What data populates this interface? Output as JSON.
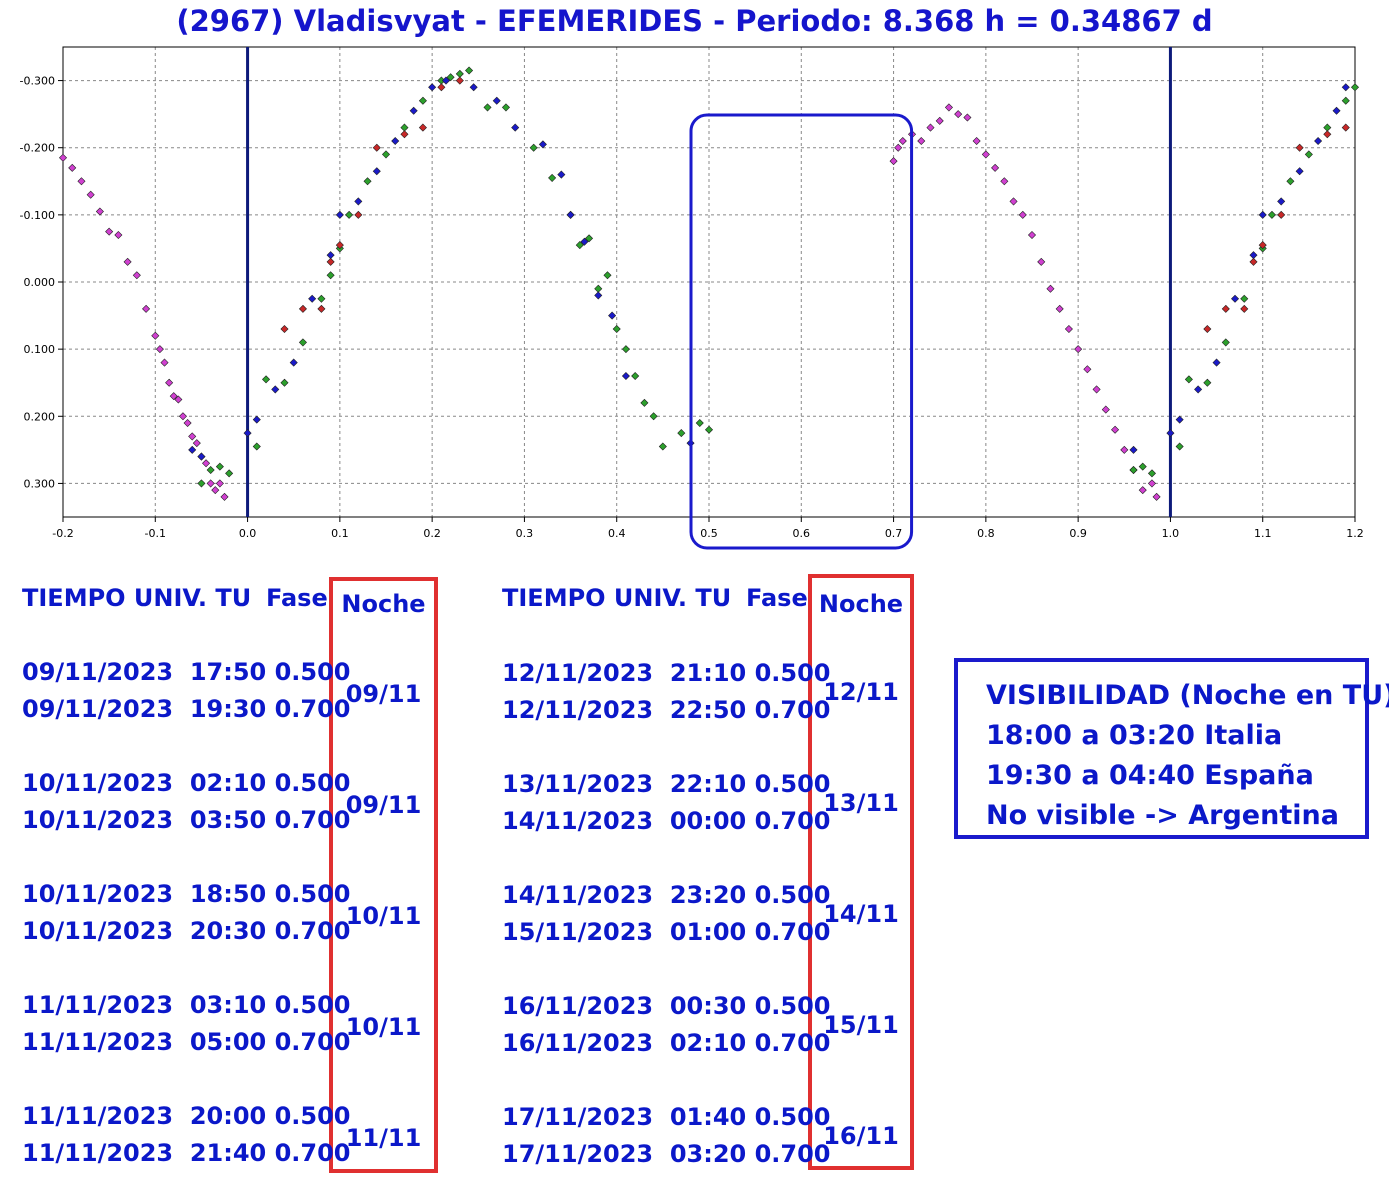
{
  "chart_data": {
    "type": "scatter",
    "title": "(2967) Vladisvyat - EFEMERIDES - Periodo: 8.368 h = 0.34867 d",
    "xlabel": "",
    "ylabel": "",
    "xlim": [
      -0.2,
      1.2
    ],
    "ylim": [
      0.35,
      -0.35
    ],
    "y_inverted": true,
    "x_ticks": [
      "-0.2",
      "-0.1",
      "0.0",
      "0.1",
      "0.2",
      "0.3",
      "0.4",
      "0.5",
      "0.6",
      "0.7",
      "0.8",
      "0.9",
      "1.0",
      "1.1",
      "1.2"
    ],
    "y_ticks": [
      "-0.300",
      "-0.200",
      "-0.100",
      "0.000",
      "0.100",
      "0.200",
      "0.300"
    ],
    "grid": true,
    "vertical_lines": [
      0.0,
      1.0
    ],
    "highlight_range": [
      0.5,
      0.7
    ],
    "colors": {
      "axis_line": "#0d1a7a",
      "highlight": "#1a1acc",
      "grid": "#888888"
    },
    "series": [
      {
        "color": "#d040d0",
        "points": [
          [
            -0.2,
            -0.185
          ],
          [
            -0.19,
            -0.17
          ],
          [
            -0.18,
            -0.15
          ],
          [
            -0.17,
            -0.13
          ],
          [
            -0.16,
            -0.105
          ],
          [
            -0.15,
            -0.075
          ],
          [
            -0.14,
            -0.07
          ],
          [
            -0.13,
            -0.03
          ],
          [
            -0.12,
            -0.01
          ],
          [
            -0.11,
            0.04
          ],
          [
            -0.1,
            0.08
          ],
          [
            -0.095,
            0.1
          ],
          [
            -0.09,
            0.12
          ],
          [
            -0.085,
            0.15
          ],
          [
            -0.08,
            0.17
          ],
          [
            -0.075,
            0.175
          ],
          [
            -0.07,
            0.2
          ],
          [
            -0.065,
            0.21
          ],
          [
            -0.06,
            0.23
          ],
          [
            -0.055,
            0.24
          ],
          [
            -0.05,
            0.26
          ],
          [
            -0.045,
            0.27
          ],
          [
            -0.04,
            0.3
          ],
          [
            -0.035,
            0.31
          ],
          [
            -0.03,
            0.3
          ],
          [
            -0.025,
            0.32
          ],
          [
            0.7,
            -0.18
          ],
          [
            0.705,
            -0.2
          ],
          [
            0.71,
            -0.21
          ],
          [
            0.72,
            -0.22
          ],
          [
            0.73,
            -0.21
          ],
          [
            0.74,
            -0.23
          ],
          [
            0.75,
            -0.24
          ],
          [
            0.76,
            -0.26
          ],
          [
            0.77,
            -0.25
          ],
          [
            0.78,
            -0.245
          ],
          [
            0.79,
            -0.21
          ],
          [
            0.8,
            -0.19
          ],
          [
            0.81,
            -0.17
          ],
          [
            0.82,
            -0.15
          ],
          [
            0.83,
            -0.12
          ],
          [
            0.84,
            -0.1
          ],
          [
            0.85,
            -0.07
          ],
          [
            0.86,
            -0.03
          ],
          [
            0.87,
            0.01
          ],
          [
            0.88,
            0.04
          ],
          [
            0.89,
            0.07
          ],
          [
            0.9,
            0.1
          ],
          [
            0.91,
            0.13
          ],
          [
            0.92,
            0.16
          ],
          [
            0.93,
            0.19
          ],
          [
            0.94,
            0.22
          ],
          [
            0.95,
            0.25
          ],
          [
            0.96,
            0.28
          ],
          [
            0.97,
            0.31
          ],
          [
            0.98,
            0.3
          ],
          [
            0.985,
            0.32
          ]
        ]
      },
      {
        "color": "#2ca02c",
        "points": [
          [
            -0.05,
            0.3
          ],
          [
            -0.04,
            0.28
          ],
          [
            -0.03,
            0.275
          ],
          [
            -0.02,
            0.285
          ],
          [
            0.01,
            0.245
          ],
          [
            0.02,
            0.145
          ],
          [
            0.04,
            0.15
          ],
          [
            0.06,
            0.09
          ],
          [
            0.08,
            0.025
          ],
          [
            0.09,
            -0.01
          ],
          [
            0.1,
            -0.05
          ],
          [
            0.11,
            -0.1
          ],
          [
            0.13,
            -0.15
          ],
          [
            0.15,
            -0.19
          ],
          [
            0.17,
            -0.23
          ],
          [
            0.19,
            -0.27
          ],
          [
            0.21,
            -0.3
          ],
          [
            0.22,
            -0.305
          ],
          [
            0.23,
            -0.31
          ],
          [
            0.24,
            -0.315
          ],
          [
            0.26,
            -0.26
          ],
          [
            0.28,
            -0.26
          ],
          [
            0.31,
            -0.2
          ],
          [
            0.33,
            -0.155
          ],
          [
            0.35,
            -0.1
          ],
          [
            0.36,
            -0.055
          ],
          [
            0.37,
            -0.065
          ],
          [
            0.38,
            0.01
          ],
          [
            0.39,
            -0.01
          ],
          [
            0.4,
            0.07
          ],
          [
            0.41,
            0.1
          ],
          [
            0.42,
            0.14
          ],
          [
            0.43,
            0.18
          ],
          [
            0.44,
            0.2
          ],
          [
            0.45,
            0.245
          ],
          [
            0.47,
            0.225
          ],
          [
            0.49,
            0.21
          ],
          [
            0.5,
            0.22
          ],
          [
            0.96,
            0.28
          ],
          [
            0.97,
            0.275
          ],
          [
            0.98,
            0.285
          ],
          [
            1.01,
            0.245
          ],
          [
            1.02,
            0.145
          ],
          [
            1.04,
            0.15
          ],
          [
            1.06,
            0.09
          ],
          [
            1.08,
            0.025
          ],
          [
            1.1,
            -0.05
          ],
          [
            1.11,
            -0.1
          ],
          [
            1.13,
            -0.15
          ],
          [
            1.15,
            -0.19
          ],
          [
            1.17,
            -0.23
          ],
          [
            1.19,
            -0.27
          ],
          [
            1.2,
            -0.29
          ]
        ]
      },
      {
        "color": "#1a1ac8",
        "points": [
          [
            -0.06,
            0.25
          ],
          [
            -0.05,
            0.26
          ],
          [
            0.0,
            0.225
          ],
          [
            0.01,
            0.205
          ],
          [
            0.03,
            0.16
          ],
          [
            0.05,
            0.12
          ],
          [
            0.07,
            0.025
          ],
          [
            0.09,
            -0.04
          ],
          [
            0.1,
            -0.1
          ],
          [
            0.12,
            -0.12
          ],
          [
            0.14,
            -0.165
          ],
          [
            0.16,
            -0.21
          ],
          [
            0.18,
            -0.255
          ],
          [
            0.2,
            -0.29
          ],
          [
            0.215,
            -0.3
          ],
          [
            0.245,
            -0.29
          ],
          [
            0.27,
            -0.27
          ],
          [
            0.29,
            -0.23
          ],
          [
            0.32,
            -0.205
          ],
          [
            0.34,
            -0.16
          ],
          [
            0.35,
            -0.1
          ],
          [
            0.365,
            -0.06
          ],
          [
            0.38,
            0.02
          ],
          [
            0.395,
            0.05
          ],
          [
            0.41,
            0.14
          ],
          [
            0.48,
            0.24
          ],
          [
            0.96,
            0.25
          ],
          [
            1.0,
            0.225
          ],
          [
            1.01,
            0.205
          ],
          [
            1.03,
            0.16
          ],
          [
            1.05,
            0.12
          ],
          [
            1.07,
            0.025
          ],
          [
            1.09,
            -0.04
          ],
          [
            1.1,
            -0.1
          ],
          [
            1.12,
            -0.12
          ],
          [
            1.14,
            -0.165
          ],
          [
            1.16,
            -0.21
          ],
          [
            1.18,
            -0.255
          ],
          [
            1.19,
            -0.29
          ]
        ]
      },
      {
        "color": "#c82828",
        "points": [
          [
            0.04,
            0.07
          ],
          [
            0.06,
            0.04
          ],
          [
            0.08,
            0.04
          ],
          [
            0.09,
            -0.03
          ],
          [
            0.1,
            -0.055
          ],
          [
            0.12,
            -0.1
          ],
          [
            0.14,
            -0.2
          ],
          [
            0.17,
            -0.22
          ],
          [
            0.19,
            -0.23
          ],
          [
            0.21,
            -0.29
          ],
          [
            0.23,
            -0.3
          ],
          [
            1.04,
            0.07
          ],
          [
            1.06,
            0.04
          ],
          [
            1.08,
            0.04
          ],
          [
            1.09,
            -0.03
          ],
          [
            1.1,
            -0.055
          ],
          [
            1.12,
            -0.1
          ],
          [
            1.14,
            -0.2
          ],
          [
            1.17,
            -0.22
          ],
          [
            1.19,
            -0.23
          ]
        ]
      }
    ]
  },
  "tables": [
    {
      "headers": {
        "tiempo": "TIEMPO UNIV. TU",
        "fase": "Fase",
        "noche": "Noche"
      },
      "groups": [
        {
          "rows": [
            "09/11/2023  17:50 0.500",
            "09/11/2023  19:30 0.700"
          ],
          "noche": "09/11"
        },
        {
          "rows": [
            "10/11/2023  02:10 0.500",
            "10/11/2023  03:50 0.700"
          ],
          "noche": "09/11"
        },
        {
          "rows": [
            "10/11/2023  18:50 0.500",
            "10/11/2023  20:30 0.700"
          ],
          "noche": "10/11"
        },
        {
          "rows": [
            "11/11/2023  03:10 0.500",
            "11/11/2023  05:00 0.700"
          ],
          "noche": "10/11"
        },
        {
          "rows": [
            "11/11/2023  20:00 0.500",
            "11/11/2023  21:40 0.700"
          ],
          "noche": "11/11"
        }
      ]
    },
    {
      "headers": {
        "tiempo": "TIEMPO UNIV. TU",
        "fase": "Fase",
        "noche": "Noche"
      },
      "groups": [
        {
          "rows": [
            "12/11/2023  21:10 0.500",
            "12/11/2023  22:50 0.700"
          ],
          "noche": "12/11"
        },
        {
          "rows": [
            "13/11/2023  22:10 0.500",
            "14/11/2023  00:00 0.700"
          ],
          "noche": "13/11"
        },
        {
          "rows": [
            "14/11/2023  23:20 0.500",
            "15/11/2023  01:00 0.700"
          ],
          "noche": "14/11"
        },
        {
          "rows": [
            "16/11/2023  00:30 0.500",
            "16/11/2023  02:10 0.700"
          ],
          "noche": "15/11"
        },
        {
          "rows": [
            "17/11/2023  01:40 0.500",
            "17/11/2023  03:20 0.700"
          ],
          "noche": "16/11"
        }
      ]
    }
  ],
  "visibility": {
    "lines": [
      "VISIBILIDAD (Noche en TU)",
      "18:00 a 03:20 Italia",
      "19:30 a 04:40 España",
      "No visible -> Argentina"
    ]
  }
}
